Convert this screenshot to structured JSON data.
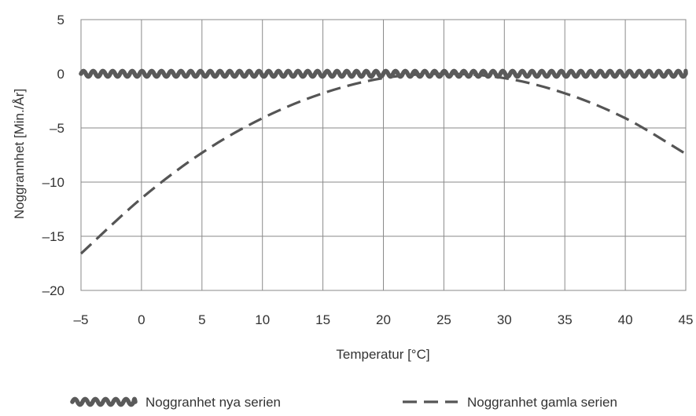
{
  "chart_data": {
    "type": "line",
    "xlabel": "Temperatur [°C]",
    "ylabel": "Noggrannhet [Min./År]",
    "xlim": [
      -5,
      45
    ],
    "ylim": [
      -20,
      5
    ],
    "xticks": [
      -5,
      0,
      5,
      10,
      15,
      20,
      25,
      30,
      35,
      40,
      45
    ],
    "yticks": [
      5,
      0,
      -5,
      -10,
      -15,
      -20
    ],
    "xtick_labels": [
      "–5",
      "0",
      "5",
      "10",
      "15",
      "20",
      "25",
      "30",
      "35",
      "40",
      "45"
    ],
    "ytick_labels": [
      "5",
      "0",
      "–5",
      "–10",
      "–15",
      "–20"
    ],
    "grid": true,
    "legend_position": "bottom",
    "series": [
      {
        "name": "Noggranhet nya serien",
        "style": "wavy",
        "color": "#5a5a5a",
        "x": [
          -5,
          45
        ],
        "y": [
          0,
          0
        ]
      },
      {
        "name": "Noggranhet gamla serien",
        "style": "dashed",
        "color": "#555555",
        "x": [
          -5,
          0,
          5,
          10,
          15,
          20,
          25,
          30,
          35,
          40,
          45
        ],
        "y": [
          -16.6,
          -11.5,
          -7.3,
          -4.1,
          -1.8,
          -0.4,
          0,
          -0.4,
          -1.8,
          -4.1,
          -7.4
        ]
      }
    ]
  }
}
